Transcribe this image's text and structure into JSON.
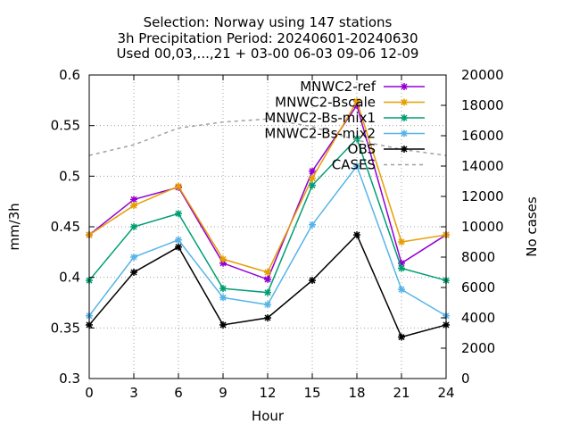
{
  "chart_data": {
    "type": "line",
    "title_lines": [
      "Selection: Norway using   147 stations",
      "3h Precipitation   Period: 20240601-20240630",
      "Used 00,03,...,21 + 03-00 06-03 09-06 12-09"
    ],
    "xlabel": "Hour",
    "ylabel": "mm/3h",
    "y2label": "No cases",
    "x": [
      0,
      3,
      6,
      9,
      12,
      15,
      18,
      21,
      24
    ],
    "xlim": [
      0,
      24
    ],
    "ylim": [
      0.3,
      0.6
    ],
    "y2lim": [
      0,
      20000
    ],
    "x_ticks": [
      "0",
      "3",
      "6",
      "9",
      "12",
      "15",
      "18",
      "21",
      "24"
    ],
    "y_ticks": [
      "0.3",
      "0.35",
      "0.4",
      "0.45",
      "0.5",
      "0.55",
      "0.6"
    ],
    "y2_ticks": [
      "0",
      "2000",
      "4000",
      "6000",
      "8000",
      "10000",
      "12000",
      "14000",
      "16000",
      "18000",
      "20000"
    ],
    "grid": true,
    "legend_position": "top-right",
    "series": [
      {
        "name": "MNWC2-ref",
        "color": "#9400d3",
        "axis": "left",
        "style": "solid-marker",
        "values": [
          0.442,
          0.477,
          0.489,
          0.414,
          0.398,
          0.505,
          0.57,
          0.414,
          0.442
        ]
      },
      {
        "name": "MNWC2-Bscale",
        "color": "#e69f00",
        "axis": "left",
        "style": "solid-marker",
        "values": [
          0.442,
          0.471,
          0.49,
          0.418,
          0.405,
          0.498,
          0.574,
          0.435,
          0.442
        ]
      },
      {
        "name": "MNWC2-Bs-mix1",
        "color": "#009e73",
        "axis": "left",
        "style": "solid-marker",
        "values": [
          0.397,
          0.45,
          0.463,
          0.389,
          0.385,
          0.491,
          0.537,
          0.409,
          0.397
        ]
      },
      {
        "name": "MNWC2-Bs-mix2",
        "color": "#56b4e9",
        "axis": "left",
        "style": "solid-marker",
        "values": [
          0.362,
          0.42,
          0.437,
          0.38,
          0.373,
          0.452,
          0.51,
          0.388,
          0.362
        ]
      },
      {
        "name": "OBS",
        "color": "#000000",
        "axis": "left",
        "style": "solid-marker",
        "values": [
          0.353,
          0.405,
          0.43,
          0.353,
          0.36,
          0.397,
          0.442,
          0.341,
          0.353
        ]
      },
      {
        "name": "CASES",
        "color": "#a0a0a0",
        "axis": "right",
        "style": "dashed",
        "values": [
          14700,
          15400,
          16500,
          16900,
          17100,
          16600,
          15700,
          15100,
          14700
        ]
      }
    ]
  }
}
